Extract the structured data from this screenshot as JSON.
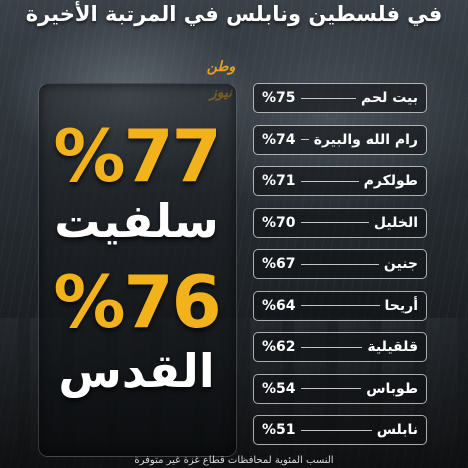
{
  "headline": "في فلسطين ونابلس في المرتبة الأخيرة",
  "logo_text": "وطن نيوز",
  "featured": [
    {
      "percent": "%77",
      "name": "سلفيت"
    },
    {
      "percent": "%76",
      "name": "القدس"
    }
  ],
  "ranking": [
    {
      "name": "بيت لحم",
      "percent": "%75"
    },
    {
      "name": "رام الله والبيرة",
      "percent": "%74"
    },
    {
      "name": "طولكرم",
      "percent": "%71"
    },
    {
      "name": "الخليل",
      "percent": "%70"
    },
    {
      "name": "جنين",
      "percent": "%67"
    },
    {
      "name": "أريحا",
      "percent": "%64"
    },
    {
      "name": "قلقيلية",
      "percent": "%62"
    },
    {
      "name": "طوباس",
      "percent": "%54"
    },
    {
      "name": "نابلس",
      "percent": "%51"
    }
  ],
  "footnote": "النسب المئوية لمحافظات قطاع غزة غير متوفرة",
  "colors": {
    "accent": "#f2b21c",
    "text": "#ffffff"
  }
}
